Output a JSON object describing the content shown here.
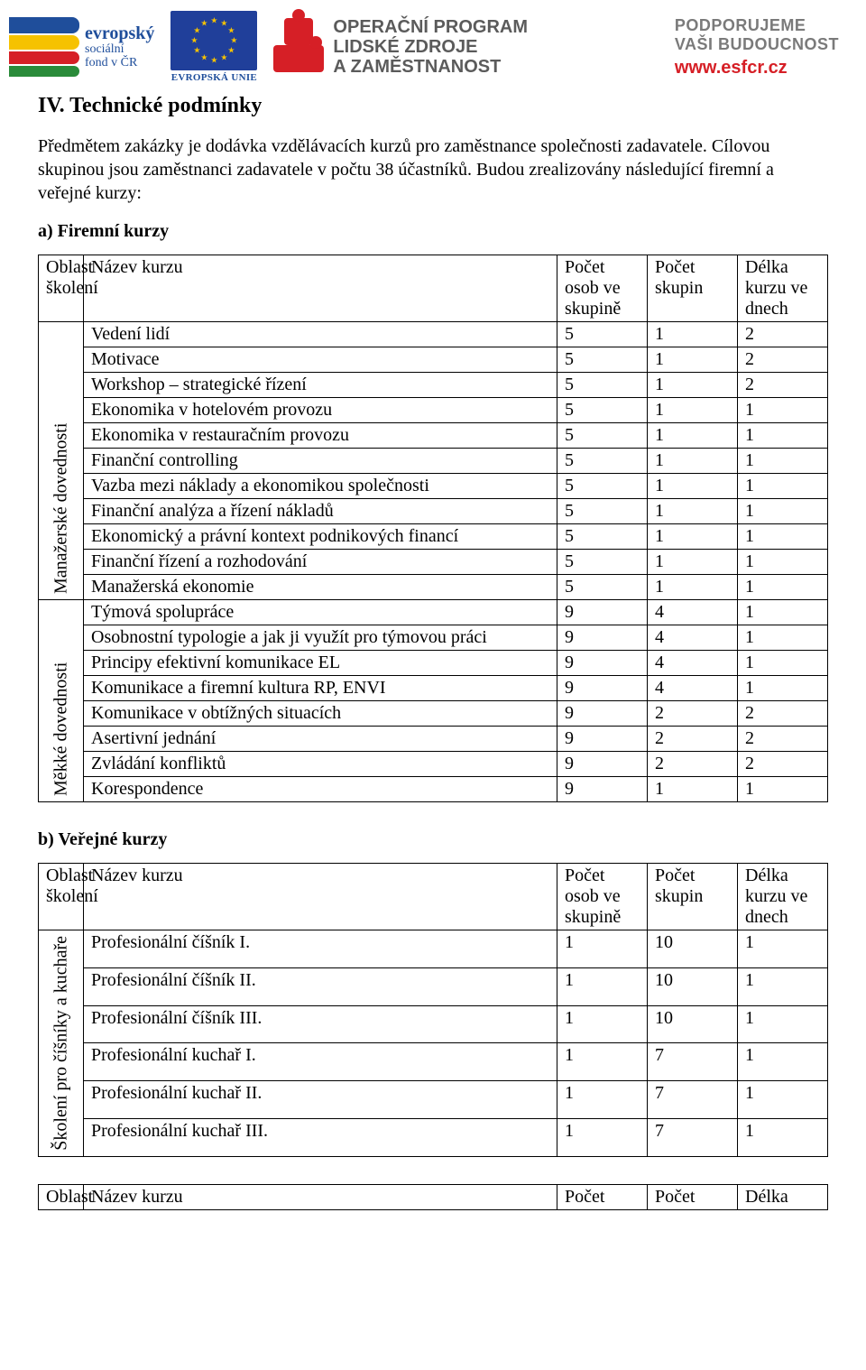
{
  "banner": {
    "esf": {
      "line1": "evropský",
      "line2": "sociální",
      "line3": "fond v ČR"
    },
    "eu_caption": "EVROPSKÁ UNIE",
    "oplz": {
      "line1": "OPERAČNÍ PROGRAM",
      "line2": "LIDSKÉ ZDROJE",
      "line3": "A ZAMĚSTNANOST"
    },
    "support": {
      "line1": "PODPORUJEME",
      "line2": "VAŠI BUDOUCNOST",
      "url": "www.esfcr.cz"
    },
    "accent_red": "#d61f26",
    "eu_blue": "#203f9a",
    "grey_text": "#7a7a7a"
  },
  "heading": "IV.   Technické podmínky",
  "intro": "Předmětem zakázky je dodávka vzdělávacích kurzů pro zaměstnance společnosti zadavatele. Cílovou skupinou jsou zaměstnanci zadavatele v počtu 38 účastníků. Budou zrealizovány následující firemní a veřejné kurzy:",
  "sectionA": "a) Firemní kurzy",
  "sectionB": "b) Veřejné kurzy",
  "tableHeaders": {
    "area": "Oblast školení",
    "name": "Název kurzu",
    "persons": "Počet osob ve skupině",
    "groups": "Počet skupin",
    "days": "Délka kurzu ve dnech"
  },
  "tableHeadersShort": {
    "area": "Oblast",
    "name": "Název kurzu",
    "persons": "Počet",
    "groups": "Počet",
    "days": "Délka"
  },
  "groupsA": [
    {
      "label": "Manažerské dovednosti",
      "rows": [
        {
          "name": "Vedení lidí",
          "persons": "5",
          "groups": "1",
          "days": "2"
        },
        {
          "name": "Motivace",
          "persons": "5",
          "groups": "1",
          "days": "2"
        },
        {
          "name": "Workshop – strategické řízení",
          "persons": "5",
          "groups": "1",
          "days": "2"
        },
        {
          "name": "Ekonomika v hotelovém provozu",
          "persons": "5",
          "groups": "1",
          "days": "1"
        },
        {
          "name": "Ekonomika v restauračním provozu",
          "persons": "5",
          "groups": "1",
          "days": "1"
        },
        {
          "name": "Finanční controlling",
          "persons": "5",
          "groups": "1",
          "days": "1"
        },
        {
          "name": "Vazba mezi náklady a ekonomikou společnosti",
          "persons": "5",
          "groups": "1",
          "days": "1"
        },
        {
          "name": "Finanční analýza a řízení nákladů",
          "persons": "5",
          "groups": "1",
          "days": "1"
        },
        {
          "name": "Ekonomický a právní kontext podnikových financí",
          "persons": "5",
          "groups": "1",
          "days": "1"
        },
        {
          "name": "Finanční řízení a rozhodování",
          "persons": "5",
          "groups": "1",
          "days": "1"
        },
        {
          "name": "Manažerská ekonomie",
          "persons": "5",
          "groups": "1",
          "days": "1"
        }
      ]
    },
    {
      "label": "Měkké dovednosti",
      "rows": [
        {
          "name": "Týmová spolupráce",
          "persons": "9",
          "groups": "4",
          "days": "1"
        },
        {
          "name": "Osobnostní typologie a jak ji využít pro týmovou práci",
          "persons": "9",
          "groups": "4",
          "days": "1"
        },
        {
          "name": "Principy efektivní komunikace EL",
          "persons": "9",
          "groups": "4",
          "days": "1"
        },
        {
          "name": "Komunikace a firemní kultura RP, ENVI",
          "persons": "9",
          "groups": "4",
          "days": "1"
        },
        {
          "name": "Komunikace v obtížných situacích",
          "persons": "9",
          "groups": "2",
          "days": "2"
        },
        {
          "name": "Asertivní jednání",
          "persons": "9",
          "groups": "2",
          "days": "2"
        },
        {
          "name": "Zvládání konfliktů",
          "persons": "9",
          "groups": "2",
          "days": "2"
        },
        {
          "name": "Korespondence",
          "persons": "9",
          "groups": "1",
          "days": "1"
        }
      ]
    }
  ],
  "groupsB": [
    {
      "label": "Školení pro číšníky a kuchaře",
      "rows": [
        {
          "name": "Profesionální číšník I.",
          "persons": "1",
          "groups": "10",
          "days": "1"
        },
        {
          "name": "Profesionální číšník II.",
          "persons": "1",
          "groups": "10",
          "days": "1"
        },
        {
          "name": "Profesionální číšník III.",
          "persons": "1",
          "groups": "10",
          "days": "1"
        },
        {
          "name": "Profesionální kuchař I.",
          "persons": "1",
          "groups": "7",
          "days": "1"
        },
        {
          "name": "Profesionální kuchař II.",
          "persons": "1",
          "groups": "7",
          "days": "1"
        },
        {
          "name": "Profesionální kuchař III.",
          "persons": "1",
          "groups": "7",
          "days": "1"
        }
      ]
    }
  ]
}
